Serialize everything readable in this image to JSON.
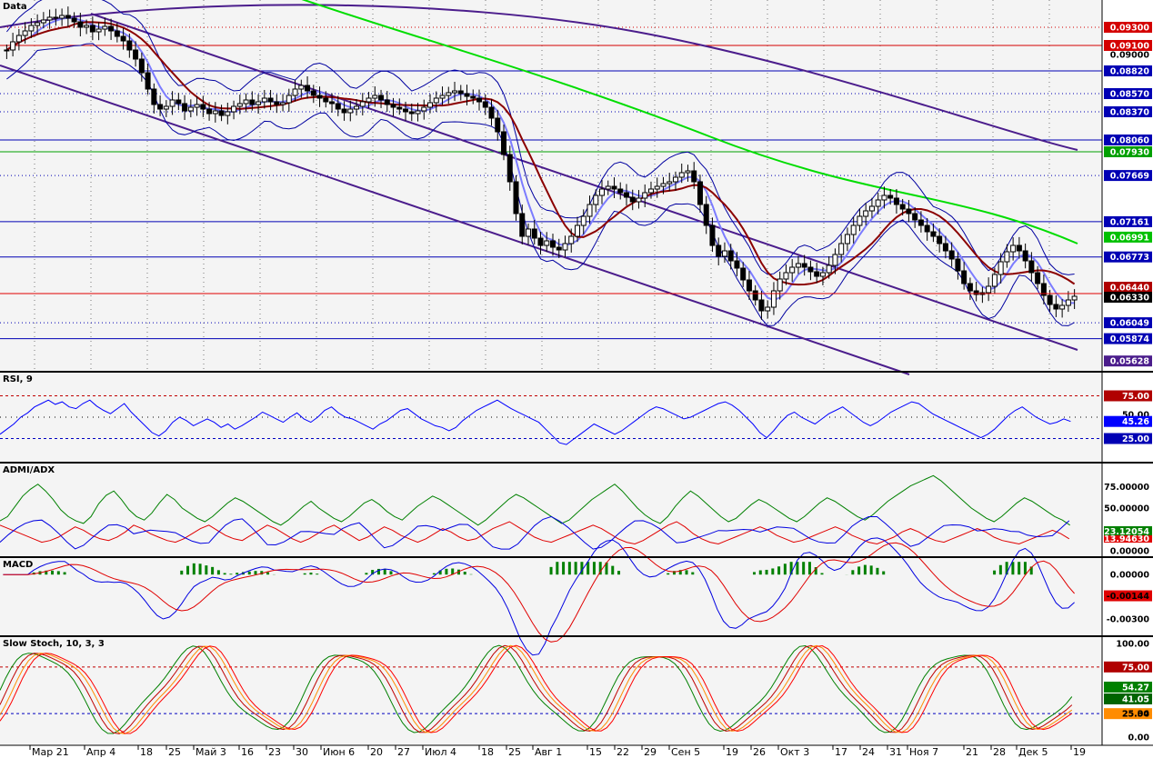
{
  "chart_data": {
    "type": "candlestick",
    "main": {
      "title": "Data",
      "ylim": [
        0.0552,
        0.096
      ],
      "price_levels": [
        {
          "label": "0.09300",
          "value": 0.093,
          "color": "#d40000",
          "style": "dotted"
        },
        {
          "label": "0.09100",
          "value": 0.091,
          "color": "#d40000",
          "style": "solid"
        },
        {
          "label": "0.09000",
          "value": 0.09,
          "color": "",
          "style": "none"
        },
        {
          "label": "0.08820",
          "value": 0.0882,
          "color": "#0000b4",
          "style": "solid"
        },
        {
          "label": "0.08570",
          "value": 0.0857,
          "color": "#0000b4",
          "style": "dotted"
        },
        {
          "label": "0.08370",
          "value": 0.0837,
          "color": "#0000b4",
          "style": "dotted"
        },
        {
          "label": "0.08060",
          "value": 0.0806,
          "color": "#0000b4",
          "style": "solid"
        },
        {
          "label": "0.07930",
          "value": 0.0793,
          "color": "#00a000",
          "style": "solid"
        },
        {
          "label": "0.07669",
          "value": 0.07669,
          "color": "#0000b4",
          "style": "dotted"
        },
        {
          "label": "0.07161",
          "value": 0.07161,
          "color": "#0000b4",
          "style": "solid"
        },
        {
          "label": "0.06991",
          "value": 0.06991,
          "color": "#00c000",
          "style": "none"
        },
        {
          "label": "0.06773",
          "value": 0.06773,
          "color": "#0000b4",
          "style": "solid"
        },
        {
          "label": "0.06440",
          "value": 0.0644,
          "color": "#b00000",
          "style": "none"
        },
        {
          "label": "0.06330",
          "value": 0.0633,
          "color": "#000000",
          "style": "none"
        },
        {
          "label": "0.06049",
          "value": 0.06049,
          "color": "#0000b4",
          "style": "dotted"
        },
        {
          "label": "0.05874",
          "value": 0.05874,
          "color": "#0000b4",
          "style": "solid"
        },
        {
          "label": "0.05628",
          "value": 0.05628,
          "color": "#4b1d8c",
          "style": "none"
        }
      ],
      "red_line": 0.0637,
      "candles_close": [
        0.0905,
        0.0914,
        0.0921,
        0.0926,
        0.0932,
        0.0935,
        0.0938,
        0.0941,
        0.094,
        0.0943,
        0.094,
        0.0936,
        0.093,
        0.0932,
        0.0925,
        0.0928,
        0.0931,
        0.0926,
        0.092,
        0.0915,
        0.0905,
        0.0895,
        0.088,
        0.0862,
        0.0845,
        0.084,
        0.0843,
        0.085,
        0.0846,
        0.0838,
        0.0842,
        0.0845,
        0.084,
        0.0835,
        0.0838,
        0.0833,
        0.0837,
        0.0843,
        0.0846,
        0.085,
        0.0845,
        0.0848,
        0.0852,
        0.0848,
        0.0845,
        0.0847,
        0.0855,
        0.0862,
        0.0866,
        0.086,
        0.0855,
        0.0852,
        0.0848,
        0.0846,
        0.084,
        0.0836,
        0.084,
        0.0843,
        0.0848,
        0.0852,
        0.0855,
        0.085,
        0.0845,
        0.0842,
        0.084,
        0.0837,
        0.0835,
        0.0838,
        0.0842,
        0.0847,
        0.0852,
        0.0855,
        0.0858,
        0.086,
        0.0857,
        0.0854,
        0.0852,
        0.0848,
        0.0842,
        0.083,
        0.0815,
        0.079,
        0.076,
        0.0725,
        0.07,
        0.0708,
        0.0698,
        0.069,
        0.0695,
        0.0688,
        0.0685,
        0.0692,
        0.07,
        0.0712,
        0.0722,
        0.0735,
        0.0745,
        0.0752,
        0.0755,
        0.0752,
        0.0748,
        0.0743,
        0.0738,
        0.0742,
        0.0748,
        0.0752,
        0.0755,
        0.0758,
        0.076,
        0.0765,
        0.077,
        0.0772,
        0.076,
        0.0735,
        0.0712,
        0.069,
        0.0678,
        0.0684,
        0.0673,
        0.0665,
        0.0652,
        0.064,
        0.063,
        0.0618,
        0.0622,
        0.064,
        0.0653,
        0.066,
        0.0666,
        0.067,
        0.0666,
        0.0661,
        0.0656,
        0.066,
        0.0668,
        0.068,
        0.0692,
        0.0702,
        0.0712,
        0.0722,
        0.0728,
        0.0733,
        0.074,
        0.0745,
        0.0742,
        0.0735,
        0.073,
        0.0725,
        0.0718,
        0.0712,
        0.0705,
        0.07,
        0.0692,
        0.0684,
        0.0675,
        0.0662,
        0.0648,
        0.064,
        0.0636,
        0.0638,
        0.0645,
        0.0658,
        0.0672,
        0.0683,
        0.069,
        0.0684,
        0.0673,
        0.066,
        0.0648,
        0.0635,
        0.0625,
        0.062,
        0.0624,
        0.063,
        0.0634
      ],
      "price_label": "0.06330"
    },
    "rsi": {
      "title": "RSI, 9",
      "ylim": [
        0,
        100
      ],
      "levels": [
        {
          "label": "75.00",
          "value": 75
        },
        {
          "label": "25.00",
          "value": 25
        }
      ],
      "level_axis_labels": [
        "50.00"
      ],
      "current_label": "45.26",
      "values": [
        30,
        36,
        42,
        50,
        55,
        62,
        66,
        70,
        65,
        68,
        62,
        60,
        66,
        70,
        63,
        58,
        54,
        60,
        66,
        56,
        48,
        40,
        32,
        28,
        34,
        44,
        50,
        46,
        40,
        44,
        48,
        44,
        38,
        42,
        36,
        40,
        45,
        50,
        56,
        52,
        48,
        44,
        50,
        55,
        48,
        44,
        50,
        58,
        62,
        55,
        50,
        48,
        44,
        40,
        36,
        42,
        46,
        52,
        58,
        60,
        54,
        48,
        44,
        40,
        38,
        34,
        38,
        46,
        52,
        58,
        62,
        66,
        70,
        65,
        60,
        56,
        52,
        48,
        44,
        36,
        28,
        20,
        18,
        24,
        30,
        36,
        42,
        38,
        34,
        30,
        34,
        40,
        46,
        52,
        58,
        62,
        60,
        56,
        52,
        48,
        50,
        54,
        58,
        62,
        66,
        68,
        64,
        58,
        50,
        42,
        32,
        26,
        34,
        44,
        52,
        56,
        50,
        46,
        42,
        48,
        54,
        58,
        62,
        56,
        50,
        44,
        40,
        44,
        50,
        56,
        60,
        64,
        68,
        66,
        60,
        54,
        50,
        46,
        42,
        38,
        34,
        30,
        26,
        30,
        36,
        44,
        52,
        58,
        62,
        56,
        50,
        46,
        42,
        44,
        48,
        45
      ]
    },
    "admi_adx": {
      "title": "ADMI/ADX",
      "ylim": [
        0,
        100
      ],
      "axis_labels": [
        "75.00000",
        "50.00000",
        "0.00000"
      ],
      "current_labels": [
        "23.12054",
        "13.94630"
      ],
      "adx": [
        35,
        40,
        52,
        64,
        72,
        78,
        70,
        60,
        48,
        40,
        35,
        32,
        40,
        55,
        65,
        70,
        60,
        48,
        40,
        36,
        44,
        56,
        66,
        60,
        50,
        44,
        38,
        34,
        40,
        48,
        56,
        62,
        58,
        52,
        46,
        40,
        34,
        30,
        36,
        44,
        52,
        58,
        50,
        44,
        38,
        34,
        40,
        48,
        56,
        60,
        54,
        46,
        40,
        36,
        44,
        52,
        58,
        64,
        60,
        54,
        48,
        42,
        36,
        30,
        36,
        44,
        52,
        60,
        66,
        62,
        56,
        50,
        44,
        38,
        32,
        36,
        44,
        52,
        60,
        66,
        72,
        78,
        70,
        60,
        50,
        42,
        36,
        32,
        40,
        52,
        62,
        70,
        64,
        56,
        48,
        40,
        34,
        38,
        46,
        54,
        60,
        56,
        50,
        44,
        38,
        34,
        40,
        48,
        56,
        62,
        58,
        52,
        46,
        40,
        36,
        42,
        50,
        58,
        64,
        70,
        76,
        80,
        84,
        88,
        82,
        74,
        66,
        58,
        50,
        44,
        38,
        34,
        40,
        48,
        56,
        62,
        58,
        52,
        46,
        40,
        36,
        30
      ],
      "pdi": [
        30,
        26,
        22,
        18,
        14,
        10,
        12,
        16,
        22,
        28,
        24,
        18,
        14,
        12,
        16,
        22,
        30,
        26,
        20,
        16,
        12,
        10,
        14,
        20,
        26,
        30,
        24,
        18,
        14,
        12,
        18,
        24,
        30,
        26,
        20,
        14,
        10,
        14,
        20,
        26,
        30,
        24,
        18,
        12,
        16,
        22,
        28,
        24,
        18,
        14,
        10,
        14,
        20,
        26,
        22,
        16,
        12,
        14,
        20,
        26,
        30,
        34,
        28,
        22,
        16,
        12,
        10,
        14,
        18,
        22,
        26,
        30,
        26,
        20,
        14,
        10,
        8,
        12,
        18,
        24,
        30,
        34,
        28,
        20,
        14,
        10,
        8,
        12,
        16,
        20,
        24,
        28,
        24,
        18,
        14,
        10,
        12,
        16,
        20,
        24,
        28,
        24,
        18,
        14,
        10,
        8,
        12,
        16,
        22,
        26,
        22,
        16,
        12,
        10,
        14,
        18,
        22,
        26,
        22,
        16,
        12,
        10,
        8,
        12,
        16,
        20,
        24,
        20,
        14
      ]
    },
    "macd": {
      "title": "MACD",
      "ylim": [
        -0.004,
        0.001
      ],
      "axis_labels": [
        "0.00000",
        "-0.00300"
      ],
      "current_label": "-0.00144"
    },
    "slow_stoch": {
      "title": "Slow Stoch, 10, 3, 3",
      "ylim": [
        0,
        100
      ],
      "levels": [
        {
          "label": "75.00",
          "value": 75
        },
        {
          "label": "25.00",
          "value": 25
        }
      ],
      "axis_labels": [
        "100.00",
        "0.00"
      ],
      "current_labels": [
        "54.27",
        "41.05",
        "25.34"
      ]
    },
    "x_axis": {
      "tick_labels": [
        "Мар 21",
        "Апр 4",
        "18",
        "25",
        "Май 3",
        "16",
        "23",
        "30",
        "Июн 6",
        "20",
        "27",
        "Июл 4",
        "18",
        "25",
        "Авг 1",
        "15",
        "22",
        "29",
        "Сен 5",
        "19",
        "26",
        "Окт 3",
        "17",
        "24",
        "31",
        "Ноя 7",
        "21",
        "28",
        "Дек 5",
        "19"
      ]
    },
    "colors": {
      "candle_up": "#ffffff",
      "candle_down": "#000000",
      "ma_fast": "#8b0000",
      "ma_mid": "#7b7bff",
      "ma_long": "#00dd00",
      "channel": "#4b1d8c",
      "bollinger": "#0000a0",
      "rsi_line": "#0000ff",
      "stoch_green": "#008000",
      "stoch_red": "#ff0000",
      "stoch_orange": "#ff8c00",
      "stoch_darkred": "#c00000"
    }
  }
}
